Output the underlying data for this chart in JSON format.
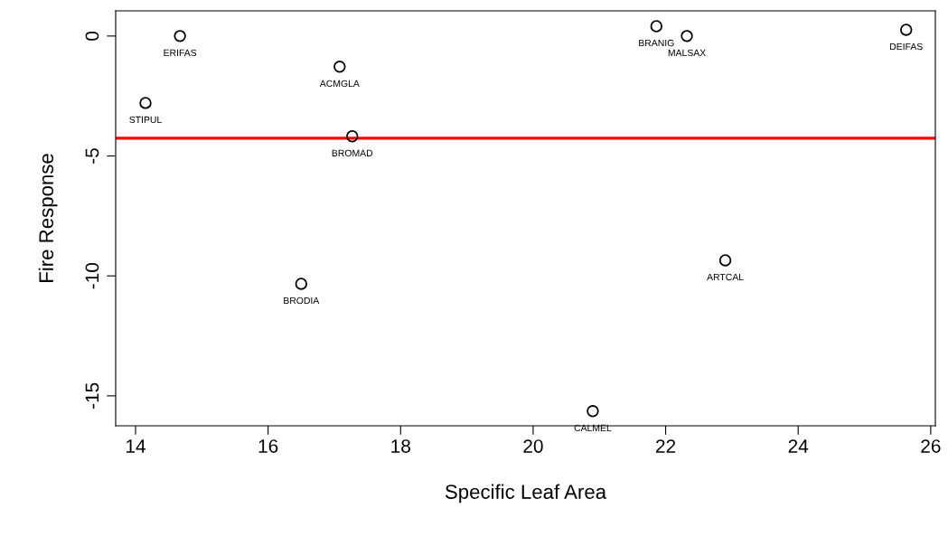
{
  "chart_data": {
    "type": "scatter",
    "xlabel": "Specific Leaf Area",
    "ylabel": "Fire Response",
    "x": [
      14.15,
      14.67,
      17.08,
      17.27,
      16.5,
      20.9,
      21.86,
      22.32,
      22.9,
      25.63
    ],
    "series": [
      {
        "color": "#000000",
        "values": [
          -2.79,
          0,
          -1.28,
          -4.18,
          -10.33,
          -15.64,
          0.41,
          0,
          -9.35,
          0.26
        ]
      }
    ],
    "marker": "circle",
    "grid": false,
    "legend": false,
    "xlim": [
      13.7,
      26.07
    ],
    "ylim": [
      -16.25,
      1.05
    ],
    "xticks": [
      14,
      16,
      18,
      20,
      22,
      24,
      26
    ],
    "yticks": [
      0,
      -5,
      -10,
      -15
    ],
    "ref_lines": [
      {
        "axis": "y",
        "value": -4.26,
        "color": "#ff0000",
        "line_style": "solid"
      }
    ],
    "annotations": [
      {
        "text": "STIPUL",
        "x": 14.15,
        "y": -2.79
      },
      {
        "text": "ERIFAS",
        "x": 14.67,
        "y": 0
      },
      {
        "text": "ACMGLA",
        "x": 17.08,
        "y": -1.28
      },
      {
        "text": "BROMAD",
        "x": 17.27,
        "y": -4.18
      },
      {
        "text": "BRODIA",
        "x": 16.5,
        "y": -10.33
      },
      {
        "text": "CALMEL",
        "x": 20.9,
        "y": -15.64
      },
      {
        "text": "BRANIG",
        "x": 21.86,
        "y": 0.41
      },
      {
        "text": "MALSAX",
        "x": 22.32,
        "y": 0
      },
      {
        "text": "ARTCAL",
        "x": 22.9,
        "y": -9.35
      },
      {
        "text": "DEIFAS",
        "x": 25.63,
        "y": 0.26
      }
    ]
  }
}
